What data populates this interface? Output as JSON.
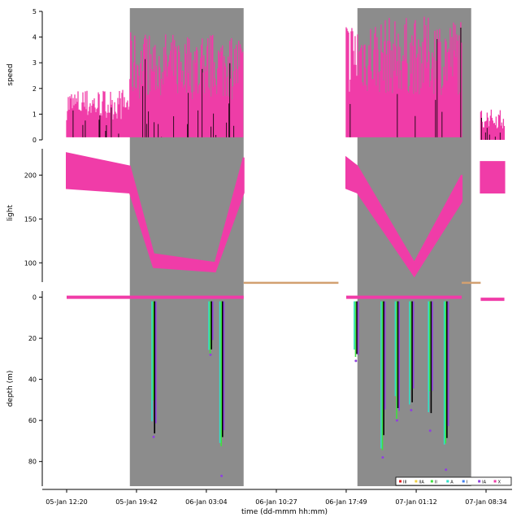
{
  "chart_data": {
    "type": "scatter",
    "xlabel": "time (dd-mmm hh:mm)",
    "x_tick_labels": [
      "05-Jan 12:20",
      "05-Jan 19:42",
      "06-Jan 03:04",
      "06-Jan 10:27",
      "06-Jan 17:49",
      "07-Jan 01:12",
      "07-Jan 08:34"
    ],
    "night_periods": [
      [
        "05-Jan 19:00",
        "06-Jan 07:00"
      ],
      [
        "06-Jan 19:00",
        "07-Jan 07:00"
      ]
    ],
    "panels": [
      {
        "ylabel": "speed",
        "ylim": [
          0,
          5
        ],
        "y_ticks": [
          0,
          1,
          2,
          3,
          4,
          5
        ],
        "series": [
          {
            "color": "#f03ca8",
            "segments": [
              {
                "start": "05-Jan 12:20",
                "end": "05-Jan 19:00",
                "low": 0.1,
                "high": 2.0
              },
              {
                "start": "05-Jan 19:00",
                "end": "06-Jan 07:00",
                "low": 0.1,
                "high": 4.2
              },
              {
                "start": "06-Jan 17:49",
                "end": "07-Jan 06:00",
                "low": 0.1,
                "high": 4.8
              },
              {
                "start": "07-Jan 08:00",
                "end": "07-Jan 10:30",
                "low": 0.0,
                "high": 1.2
              }
            ]
          }
        ]
      },
      {
        "ylabel": "light",
        "ylim": [
          78,
          230
        ],
        "y_ticks": [
          100,
          150,
          200
        ],
        "series": [
          {
            "color": "#f03ca8",
            "profile": [
              {
                "t": "05-Jan 12:20",
                "low": 185,
                "high": 225
              },
              {
                "t": "05-Jan 19:00",
                "low": 180,
                "high": 210
              },
              {
                "t": "05-Jan 21:30",
                "low": 95,
                "high": 110
              },
              {
                "t": "06-Jan 04:00",
                "low": 90,
                "high": 100
              },
              {
                "t": "06-Jan 07:00",
                "low": 180,
                "high": 220
              },
              {
                "t": "06-Jan 17:49",
                "low": 185,
                "high": 220
              },
              {
                "t": "06-Jan 19:00",
                "low": 180,
                "high": 210
              },
              {
                "t": "07-Jan 01:00",
                "low": 85,
                "high": 100
              },
              {
                "t": "07-Jan 06:00",
                "low": 170,
                "high": 200
              },
              {
                "t": "07-Jan 08:00",
                "low": 180,
                "high": 215
              },
              {
                "t": "07-Jan 10:30",
                "low": 180,
                "high": 215
              }
            ]
          }
        ]
      },
      {
        "ylabel": "depth (m)",
        "ylim": [
          92,
          -3
        ],
        "y_ticks": [
          0,
          20,
          40,
          60,
          80
        ],
        "series": [
          {
            "color": "#f03ca8",
            "segments": [
              {
                "start": "05-Jan 12:20",
                "end": "06-Jan 07:00",
                "depth": 0
              },
              {
                "start": "06-Jan 17:49",
                "end": "07-Jan 06:00",
                "depth": 0
              },
              {
                "start": "07-Jan 08:00",
                "end": "07-Jan 10:30",
                "depth": 1
              }
            ]
          },
          {
            "color": "#d2a070",
            "segments": [
              {
                "start": "06-Jan 07:00",
                "end": "06-Jan 17:00",
                "depth": -7
              },
              {
                "start": "07-Jan 06:00",
                "end": "07-Jan 08:00",
                "depth": -7
              }
            ]
          }
        ],
        "dives": [
          {
            "t": "05-Jan 21:20",
            "depth": 68
          },
          {
            "t": "06-Jan 03:20",
            "depth": 28
          },
          {
            "t": "06-Jan 04:30",
            "depth": 87
          },
          {
            "t": "06-Jan 18:40",
            "depth": 31
          },
          {
            "t": "06-Jan 21:30",
            "depth": 78
          },
          {
            "t": "06-Jan 23:00",
            "depth": 60
          },
          {
            "t": "07-Jan 00:30",
            "depth": 55
          },
          {
            "t": "07-Jan 02:30",
            "depth": 65
          },
          {
            "t": "07-Jan 04:10",
            "depth": 84
          }
        ]
      }
    ],
    "legend": {
      "placement": "bottom-right",
      "entries": [
        {
          "label": "III",
          "color": "#e02020"
        },
        {
          "label": "IIA",
          "color": "#f0d040"
        },
        {
          "label": "II",
          "color": "#40e040"
        },
        {
          "label": "A",
          "color": "#30e0c8"
        },
        {
          "label": "I",
          "color": "#4080f0"
        },
        {
          "label": "IA",
          "color": "#9040e0"
        },
        {
          "label": "X",
          "color": "#f03ca8"
        }
      ]
    },
    "colors": {
      "night_shade": "#8c8c8c",
      "main": "#f03ca8",
      "surface_gap": "#d2a070",
      "black": "#000000"
    }
  }
}
